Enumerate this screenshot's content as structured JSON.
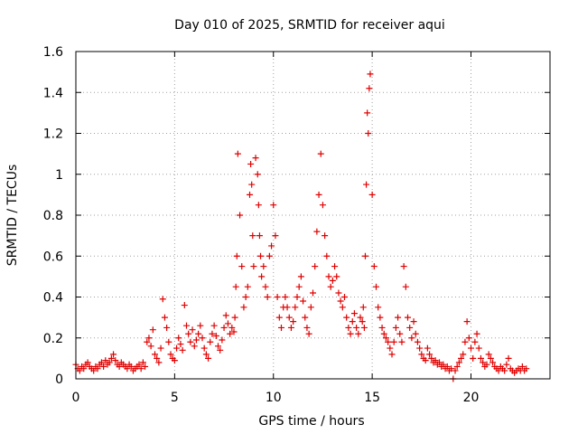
{
  "chart_data": {
    "type": "scatter",
    "title": "Day 010 of 2025, SRMTID for receiver aqui",
    "xlabel": "GPS time / hours",
    "ylabel": "SRMTID / TECUs",
    "xlim": [
      0,
      24
    ],
    "ylim": [
      0,
      1.6
    ],
    "x_ticks": [
      0,
      5,
      10,
      15,
      20
    ],
    "x_tick_labels": [
      "0",
      "5",
      "10",
      "15",
      "20"
    ],
    "y_ticks": [
      0,
      0.2,
      0.4,
      0.6,
      0.8,
      1.0,
      1.2,
      1.4,
      1.6
    ],
    "y_tick_labels": [
      "0",
      "0.2",
      "0.4",
      "0.6",
      "0.8",
      "1",
      "1.2",
      "1.4",
      "1.6"
    ],
    "grid": true,
    "marker": "plus",
    "marker_color": "#e00000",
    "series": [
      {
        "name": "SRMTID",
        "x": [
          0.0,
          0.1,
          0.2,
          0.3,
          0.4,
          0.5,
          0.6,
          0.7,
          0.8,
          0.9,
          1.0,
          1.1,
          1.2,
          1.3,
          1.4,
          1.5,
          1.6,
          1.7,
          1.8,
          1.9,
          2.0,
          2.1,
          2.2,
          2.3,
          2.4,
          2.5,
          2.6,
          2.7,
          2.8,
          2.9,
          3.0,
          3.1,
          3.2,
          3.3,
          3.4,
          3.5,
          3.6,
          3.7,
          3.8,
          3.9,
          4.0,
          4.1,
          4.2,
          4.3,
          4.4,
          4.5,
          4.6,
          4.7,
          4.8,
          4.9,
          5.0,
          5.1,
          5.2,
          5.3,
          5.4,
          5.5,
          5.6,
          5.7,
          5.8,
          5.9,
          6.0,
          6.1,
          6.2,
          6.3,
          6.4,
          6.5,
          6.6,
          6.7,
          6.8,
          6.9,
          7.0,
          7.1,
          7.2,
          7.3,
          7.4,
          7.5,
          7.6,
          7.7,
          7.8,
          7.9,
          8.0,
          8.05,
          8.1,
          8.15,
          8.2,
          8.3,
          8.4,
          8.5,
          8.6,
          8.7,
          8.8,
          8.85,
          8.9,
          8.95,
          9.0,
          9.1,
          9.2,
          9.25,
          9.3,
          9.35,
          9.4,
          9.5,
          9.6,
          9.7,
          9.8,
          9.9,
          10.0,
          10.1,
          10.2,
          10.3,
          10.4,
          10.5,
          10.6,
          10.7,
          10.8,
          10.9,
          11.0,
          11.1,
          11.2,
          11.3,
          11.4,
          11.5,
          11.6,
          11.7,
          11.8,
          11.9,
          12.0,
          12.1,
          12.2,
          12.3,
          12.4,
          12.5,
          12.6,
          12.7,
          12.8,
          12.9,
          13.0,
          13.1,
          13.2,
          13.3,
          13.4,
          13.5,
          13.6,
          13.7,
          13.8,
          13.9,
          14.0,
          14.1,
          14.2,
          14.3,
          14.4,
          14.5,
          14.55,
          14.6,
          14.65,
          14.7,
          14.75,
          14.8,
          14.85,
          14.9,
          15.0,
          15.1,
          15.2,
          15.3,
          15.4,
          15.5,
          15.6,
          15.7,
          15.8,
          15.9,
          16.0,
          16.1,
          16.2,
          16.3,
          16.4,
          16.5,
          16.6,
          16.7,
          16.8,
          16.9,
          17.0,
          17.1,
          17.2,
          17.3,
          17.4,
          17.5,
          17.6,
          17.7,
          17.8,
          17.9,
          18.0,
          18.1,
          18.2,
          18.3,
          18.4,
          18.5,
          18.6,
          18.7,
          18.8,
          18.9,
          19.0,
          19.1,
          19.2,
          19.3,
          19.4,
          19.5,
          19.6,
          19.7,
          19.8,
          19.9,
          20.0,
          20.1,
          20.2,
          20.3,
          20.4,
          20.5,
          20.6,
          20.7,
          20.8,
          20.9,
          21.0,
          21.1,
          21.2,
          21.3,
          21.4,
          21.5,
          21.6,
          21.7,
          21.8,
          21.9,
          22.0,
          22.1,
          22.2,
          22.3,
          22.4,
          22.5,
          22.6,
          22.7,
          22.8
        ],
        "y": [
          0.07,
          0.05,
          0.04,
          0.06,
          0.05,
          0.07,
          0.08,
          0.06,
          0.05,
          0.04,
          0.06,
          0.05,
          0.07,
          0.08,
          0.06,
          0.09,
          0.07,
          0.08,
          0.1,
          0.12,
          0.09,
          0.07,
          0.06,
          0.08,
          0.07,
          0.06,
          0.05,
          0.07,
          0.06,
          0.04,
          0.05,
          0.06,
          0.07,
          0.05,
          0.08,
          0.06,
          0.18,
          0.2,
          0.16,
          0.24,
          0.12,
          0.1,
          0.08,
          0.15,
          0.39,
          0.3,
          0.25,
          0.18,
          0.12,
          0.1,
          0.09,
          0.15,
          0.2,
          0.17,
          0.14,
          0.36,
          0.26,
          0.22,
          0.18,
          0.24,
          0.16,
          0.19,
          0.22,
          0.26,
          0.2,
          0.15,
          0.12,
          0.1,
          0.18,
          0.22,
          0.26,
          0.21,
          0.16,
          0.14,
          0.19,
          0.25,
          0.31,
          0.27,
          0.22,
          0.25,
          0.23,
          0.3,
          0.45,
          0.6,
          1.1,
          0.8,
          0.55,
          0.35,
          0.4,
          0.45,
          0.9,
          1.05,
          0.95,
          0.7,
          0.55,
          1.08,
          1.0,
          0.85,
          0.7,
          0.6,
          0.5,
          0.55,
          0.45,
          0.4,
          0.6,
          0.65,
          0.85,
          0.7,
          0.4,
          0.3,
          0.25,
          0.35,
          0.4,
          0.35,
          0.3,
          0.25,
          0.28,
          0.35,
          0.4,
          0.45,
          0.5,
          0.38,
          0.3,
          0.25,
          0.22,
          0.35,
          0.42,
          0.55,
          0.72,
          0.9,
          1.1,
          0.85,
          0.7,
          0.6,
          0.5,
          0.45,
          0.48,
          0.55,
          0.5,
          0.42,
          0.38,
          0.35,
          0.4,
          0.3,
          0.25,
          0.22,
          0.28,
          0.32,
          0.25,
          0.22,
          0.3,
          0.28,
          0.35,
          0.25,
          0.6,
          0.95,
          1.3,
          1.2,
          1.42,
          1.49,
          0.9,
          0.55,
          0.45,
          0.35,
          0.3,
          0.25,
          0.22,
          0.2,
          0.18,
          0.15,
          0.12,
          0.18,
          0.25,
          0.3,
          0.22,
          0.18,
          0.55,
          0.45,
          0.3,
          0.25,
          0.2,
          0.28,
          0.22,
          0.18,
          0.15,
          0.12,
          0.1,
          0.09,
          0.15,
          0.12,
          0.1,
          0.08,
          0.09,
          0.07,
          0.08,
          0.06,
          0.07,
          0.05,
          0.06,
          0.04,
          0.05,
          0.0,
          0.04,
          0.06,
          0.08,
          0.1,
          0.12,
          0.18,
          0.28,
          0.2,
          0.15,
          0.1,
          0.18,
          0.22,
          0.15,
          0.1,
          0.08,
          0.06,
          0.07,
          0.12,
          0.1,
          0.08,
          0.06,
          0.05,
          0.04,
          0.06,
          0.05,
          0.04,
          0.07,
          0.1,
          0.05,
          0.04,
          0.03,
          0.04,
          0.05,
          0.04,
          0.06,
          0.04,
          0.05
        ]
      }
    ]
  }
}
